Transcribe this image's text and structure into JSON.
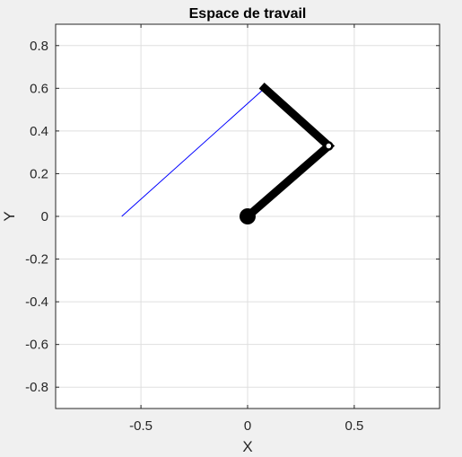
{
  "figure": {
    "background": "#f0f0f0"
  },
  "chart_data": {
    "type": "line",
    "title": "Espace de travail",
    "xlabel": "X",
    "ylabel": "Y",
    "xlim": [
      -0.9,
      0.9
    ],
    "ylim": [
      -0.9,
      0.9
    ],
    "xticks": [
      -0.5,
      0,
      0.5
    ],
    "xtick_labels": [
      "-0.5",
      "0",
      "0.5"
    ],
    "yticks": [
      0.8,
      0.6,
      0.4,
      0.2,
      0,
      -0.2,
      -0.4,
      -0.6,
      -0.8
    ],
    "ytick_labels": [
      "0.8",
      "0.6",
      "0.4",
      "0.2",
      "0",
      "-0.2",
      "-0.4",
      "-0.6",
      "-0.8"
    ],
    "grid": true,
    "legend": "none",
    "series": [
      {
        "role": "trajectory",
        "color": "#0000ff",
        "x": [
          -0.59,
          0.08
        ],
        "y": [
          0.0,
          0.6
        ]
      },
      {
        "role": "arm",
        "color": "#000000",
        "x": [
          0.0,
          0.38,
          0.08
        ],
        "y": [
          0.0,
          0.33,
          0.6
        ]
      }
    ],
    "markers": [
      {
        "name": "base-joint",
        "x": 0.0,
        "y": 0.0,
        "shape": "filled-circle"
      },
      {
        "name": "elbow-joint",
        "x": 0.38,
        "y": 0.33,
        "shape": "hollow-circle"
      }
    ]
  }
}
